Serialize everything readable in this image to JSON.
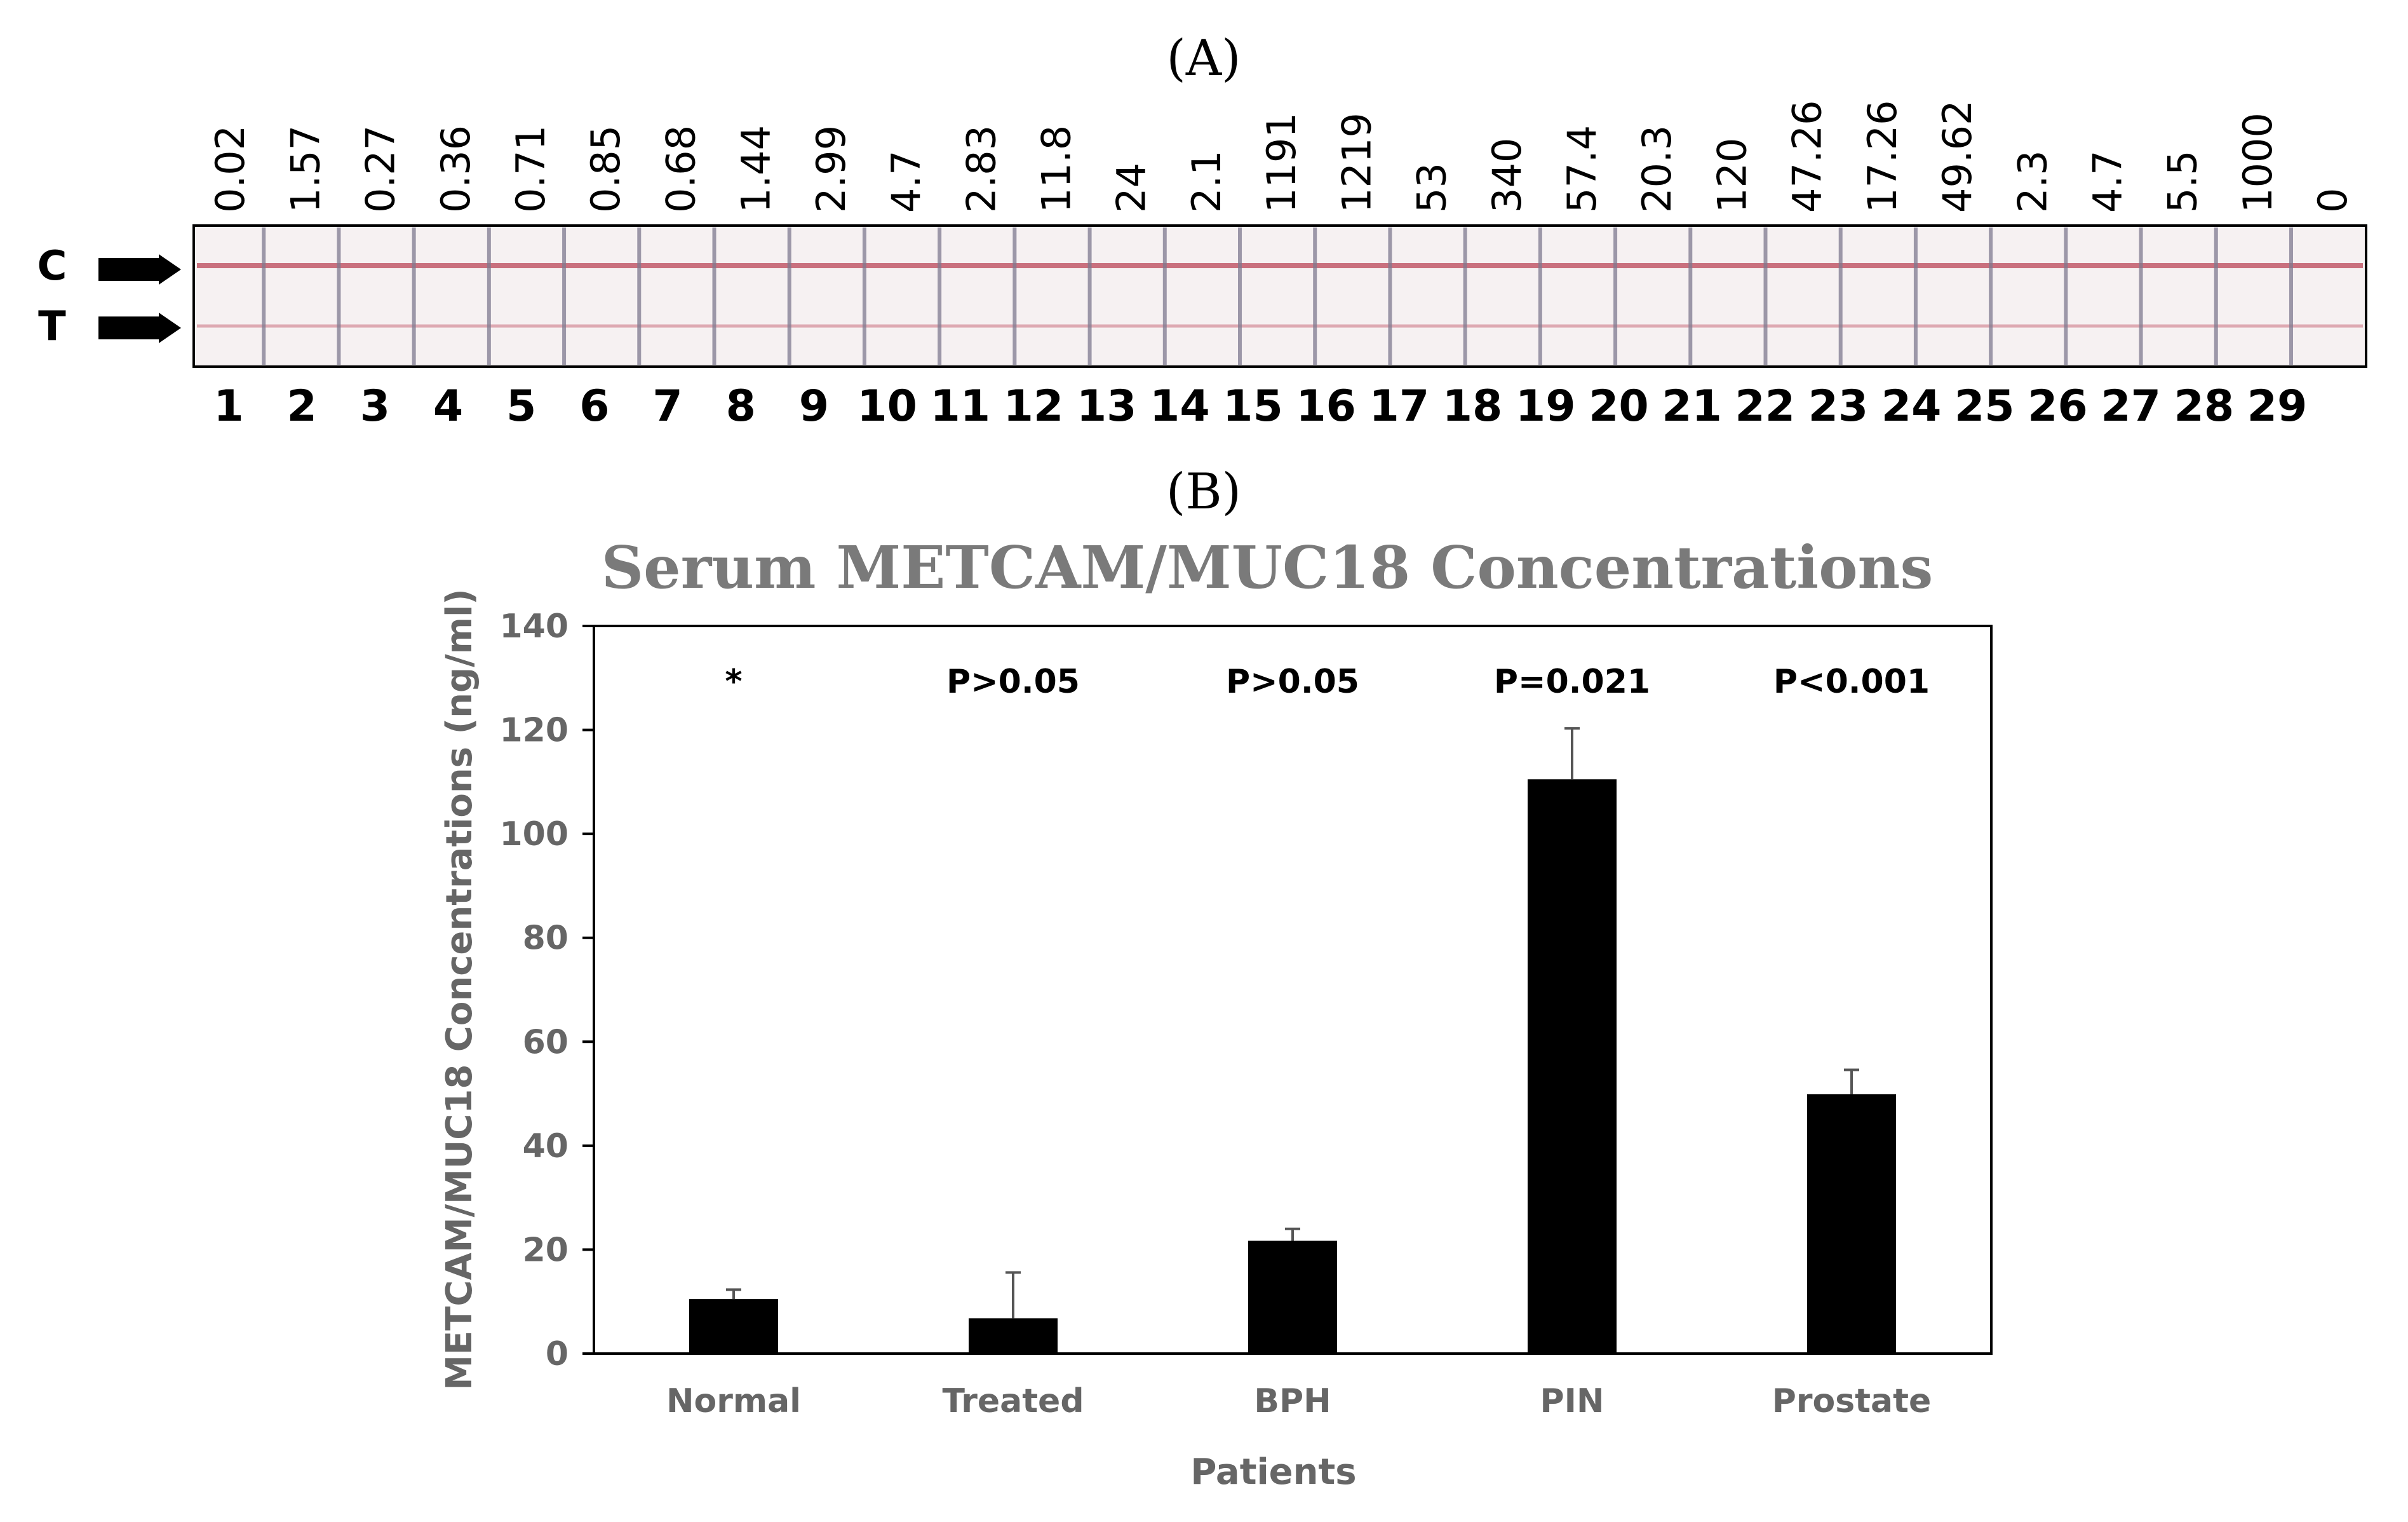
{
  "panel_a": {
    "label": "(A)",
    "control_label": "C",
    "test_label": "T",
    "concentrations": [
      "0.02",
      "1.57",
      "0.27",
      "0.36",
      "0.71",
      "0.85",
      "0.68",
      "1.44",
      "2.99",
      "4.7",
      "2.83",
      "11.8",
      "24",
      "2.1",
      "1191",
      "1219",
      "53",
      "340",
      "57.4",
      "20.3",
      "120",
      "47.26",
      "17.26",
      "49.62",
      "2.3",
      "4.7",
      "5.5",
      "1000",
      "0"
    ],
    "lane_numbers": [
      "1",
      "2",
      "3",
      "4",
      "5",
      "6",
      "7",
      "8",
      "9",
      "10",
      "11",
      "12",
      "13",
      "14",
      "15",
      "16",
      "17",
      "18",
      "19",
      "20",
      "21",
      "22",
      "23",
      "24",
      "25",
      "26",
      "27",
      "28",
      "29"
    ],
    "colors": {
      "strip_line": "#c9707e",
      "strip_background": "#f6f1f2"
    }
  },
  "panel_b": {
    "label": "(B)"
  },
  "chart_data": {
    "type": "bar",
    "title": "Serum METCAM/MUC18 Concentrations",
    "xlabel": "Patients",
    "ylabel": "METCAM/MUC18 Concentrations (ng/ml)",
    "categories": [
      "Normal",
      "Treated",
      "BPH",
      "PIN",
      "Prostate"
    ],
    "values": [
      10.5,
      6.8,
      21.7,
      110.5,
      49.9
    ],
    "errors": [
      1.8,
      8.8,
      2.3,
      9.8,
      4.7
    ],
    "annotations": [
      "*",
      "P>0.05",
      "P>0.05",
      "P=0.021",
      "P<0.001"
    ],
    "ylim": [
      0,
      140
    ],
    "yticks": [
      0,
      20,
      40,
      60,
      80,
      100,
      120,
      140
    ],
    "bar_color": "#000000",
    "grid": false
  }
}
